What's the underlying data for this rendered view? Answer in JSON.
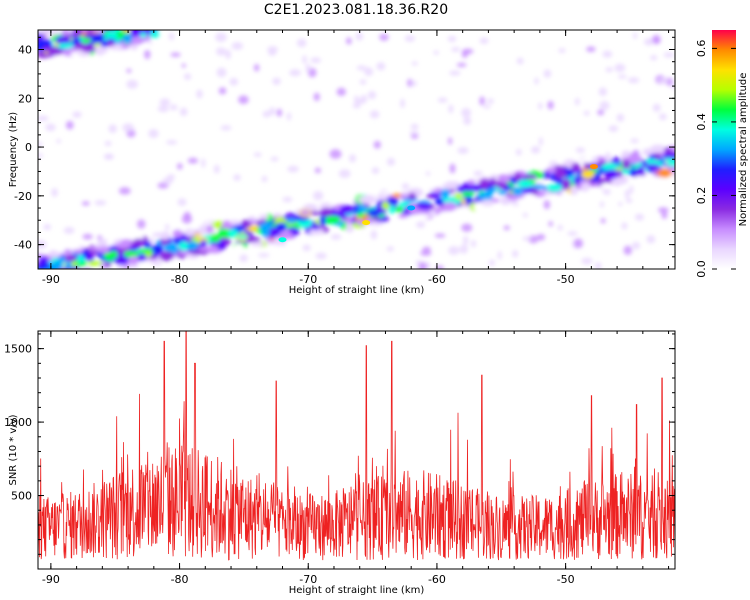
{
  "title": "C2E1.2023.081.18.36.R20",
  "chart_data": [
    {
      "type": "heatmap",
      "xlabel": "Height of straight line (km)",
      "ylabel": "Frequency (Hz)",
      "xlim": [
        -91,
        -41.5
      ],
      "ylim": [
        -50,
        48
      ],
      "xticks": [
        -90,
        -80,
        -70,
        -60,
        -50
      ],
      "yticks": [
        -40,
        -20,
        0,
        20,
        40
      ],
      "colorbar": {
        "label": "Normalized spectral amplitude",
        "range": [
          0,
          0.65
        ],
        "ticks": [
          "0.0",
          "0.2",
          "0.4",
          "0.6"
        ],
        "colormap": [
          "#ffffff",
          "#e9d6ff",
          "#c78cff",
          "#8a2be2",
          "#5b00ff",
          "#1f1fff",
          "#00a8ff",
          "#00ffe0",
          "#00ff3c",
          "#b6ff00",
          "#ffe100",
          "#ff8a00",
          "#ff004a"
        ]
      },
      "ridges": [
        {
          "name": "",
          "x_start": -91,
          "y_start": -50,
          "x_end": -41.5,
          "y_end": -5
        },
        {
          "name": "",
          "x_start": -91,
          "y_start": 42,
          "x_end": -82,
          "y_end": 48
        }
      ]
    },
    {
      "type": "line",
      "xlabel": "Height of straight line (km)",
      "ylabel": "SNR (10 * v/v)",
      "xlim": [
        -91,
        -41.5
      ],
      "ylim": [
        0,
        1620
      ],
      "xticks": [
        -90,
        -80,
        -70,
        -60,
        -50
      ],
      "yticks": [
        500,
        1000,
        1500
      ],
      "series": [
        {
          "name": "",
          "color": "#ee2222",
          "peaks": [
            {
              "x": -81.2,
              "y": 1550
            },
            {
              "x": -79.5,
              "y": 1615
            },
            {
              "x": -78.8,
              "y": 1400
            },
            {
              "x": -72.5,
              "y": 1280
            },
            {
              "x": -65.5,
              "y": 1520
            },
            {
              "x": -63.5,
              "y": 1550
            },
            {
              "x": -56.5,
              "y": 1320
            },
            {
              "x": -48.0,
              "y": 1180
            },
            {
              "x": -44.5,
              "y": 1120
            },
            {
              "x": -42.5,
              "y": 1300
            }
          ]
        }
      ]
    }
  ]
}
